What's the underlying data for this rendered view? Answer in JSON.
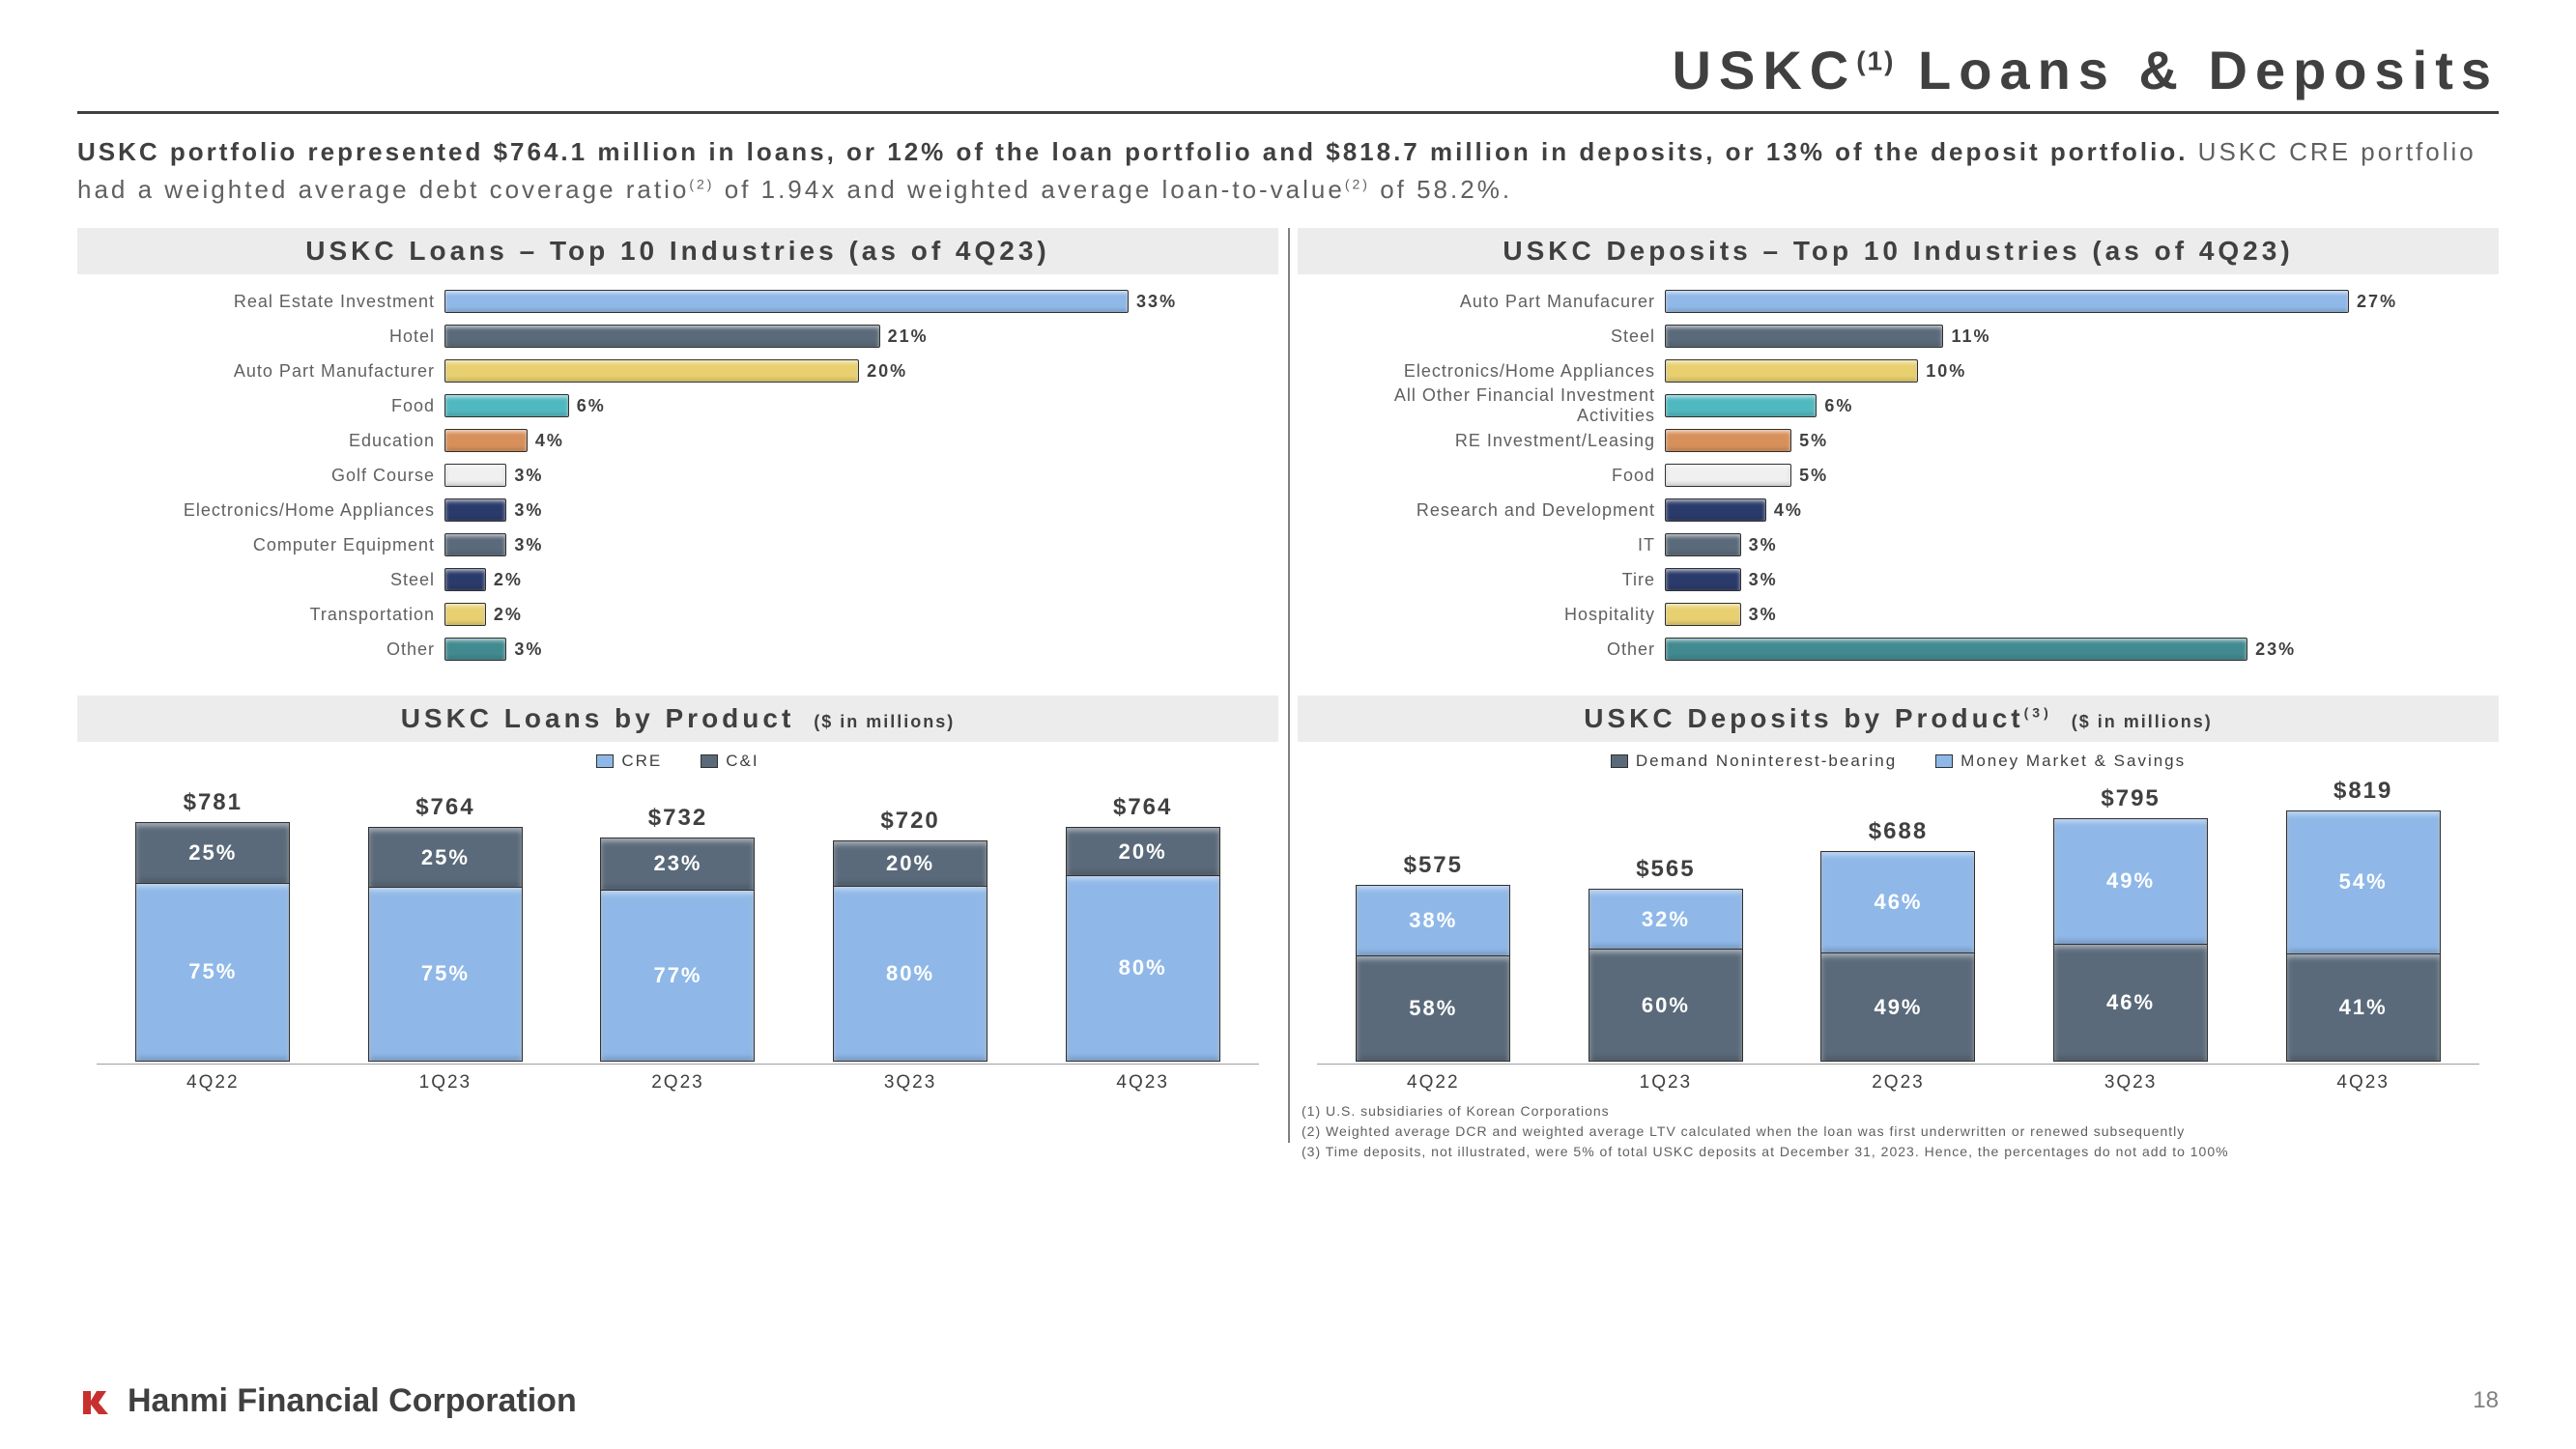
{
  "title": {
    "main": "USKC",
    "sup": "(1)",
    "rest": " Loans & Deposits"
  },
  "intro": {
    "bold": "USKC portfolio represented $764.1 million in loans, or 12% of the loan portfolio and $818.7 million in deposits, or 13% of the deposit portfolio.",
    "rest": " USKC CRE portfolio had a weighted average debt coverage ratio",
    "sup1": "(2)",
    "rest2": " of 1.94x and weighted average loan-to-value",
    "sup2": "(2)",
    "rest3": " of 58.2%."
  },
  "loans_top10": {
    "title": "USKC Loans – Top 10 Industries (as of 4Q23)",
    "max": 33,
    "colors": [
      "#8fb8e8",
      "#5a6a7a",
      "#e8d070",
      "#50b8c0",
      "#d8905a",
      "#f0f0f0",
      "#2a3a6a",
      "#5a6a7a",
      "#2a3a6a",
      "#e8d070",
      "#408a90"
    ],
    "rows": [
      {
        "label": "Real Estate Investment",
        "value": 33
      },
      {
        "label": "Hotel",
        "value": 21
      },
      {
        "label": "Auto Part Manufacturer",
        "value": 20
      },
      {
        "label": "Food",
        "value": 6
      },
      {
        "label": "Education",
        "value": 4
      },
      {
        "label": "Golf Course",
        "value": 3
      },
      {
        "label": "Electronics/Home Appliances",
        "value": 3
      },
      {
        "label": "Computer Equipment",
        "value": 3
      },
      {
        "label": "Steel",
        "value": 2
      },
      {
        "label": "Transportation",
        "value": 2
      },
      {
        "label": "Other",
        "value": 3
      }
    ]
  },
  "deposits_top10": {
    "title": "USKC Deposits – Top 10 Industries (as of 4Q23)",
    "max": 27,
    "colors": [
      "#8fb8e8",
      "#5a6a7a",
      "#e8d070",
      "#50b8c0",
      "#d8905a",
      "#f0f0f0",
      "#2a3a6a",
      "#5a6a7a",
      "#2a3a6a",
      "#e8d070",
      "#408a90"
    ],
    "rows": [
      {
        "label": "Auto Part Manufacurer",
        "value": 27
      },
      {
        "label": "Steel",
        "value": 11
      },
      {
        "label": "Electronics/Home Appliances",
        "value": 10
      },
      {
        "label": "All Other Financial Investment Activities",
        "value": 6
      },
      {
        "label": "RE Investment/Leasing",
        "value": 5
      },
      {
        "label": "Food",
        "value": 5
      },
      {
        "label": "Research and Development",
        "value": 4
      },
      {
        "label": "IT",
        "value": 3
      },
      {
        "label": "Tire",
        "value": 3
      },
      {
        "label": "Hospitality",
        "value": 3
      },
      {
        "label": "Other",
        "value": 23
      }
    ]
  },
  "loans_product": {
    "title": "USKC Loans by Product",
    "subtitle": "($ in millions)",
    "legend": [
      {
        "label": "CRE",
        "color": "#8fb8e8"
      },
      {
        "label": "C&I",
        "color": "#5a6a7a"
      }
    ],
    "categories": [
      "4Q22",
      "1Q23",
      "2Q23",
      "3Q23",
      "4Q23"
    ],
    "totals": [
      "$781",
      "$764",
      "$732",
      "$720",
      "$764"
    ],
    "max_total": 819,
    "stacks": [
      [
        {
          "label": "75%",
          "h": 75,
          "color": "#8fb8e8"
        },
        {
          "label": "25%",
          "h": 25,
          "color": "#5a6a7a"
        }
      ],
      [
        {
          "label": "75%",
          "h": 75,
          "color": "#8fb8e8"
        },
        {
          "label": "25%",
          "h": 25,
          "color": "#5a6a7a"
        }
      ],
      [
        {
          "label": "77%",
          "h": 77,
          "color": "#8fb8e8"
        },
        {
          "label": "23%",
          "h": 23,
          "color": "#5a6a7a"
        }
      ],
      [
        {
          "label": "80%",
          "h": 80,
          "color": "#8fb8e8"
        },
        {
          "label": "20%",
          "h": 20,
          "color": "#5a6a7a"
        }
      ],
      [
        {
          "label": "80%",
          "h": 80,
          "color": "#8fb8e8"
        },
        {
          "label": "20%",
          "h": 20,
          "color": "#5a6a7a"
        }
      ]
    ],
    "totals_num": [
      781,
      764,
      732,
      720,
      764
    ]
  },
  "deposits_product": {
    "title": "USKC Deposits by Product",
    "title_sup": "(3)",
    "subtitle": "($ in millions)",
    "legend": [
      {
        "label": "Demand Noninterest-bearing",
        "color": "#5a6a7a"
      },
      {
        "label": "Money Market & Savings",
        "color": "#8fb8e8"
      }
    ],
    "categories": [
      "4Q22",
      "1Q23",
      "2Q23",
      "3Q23",
      "4Q23"
    ],
    "totals": [
      "$575",
      "$565",
      "$688",
      "$795",
      "$819"
    ],
    "max_total": 819,
    "stacks": [
      [
        {
          "label": "58%",
          "h": 58,
          "color": "#5a6a7a"
        },
        {
          "label": "38%",
          "h": 38,
          "color": "#8fb8e8"
        }
      ],
      [
        {
          "label": "60%",
          "h": 60,
          "color": "#5a6a7a"
        },
        {
          "label": "32%",
          "h": 32,
          "color": "#8fb8e8"
        }
      ],
      [
        {
          "label": "49%",
          "h": 49,
          "color": "#5a6a7a"
        },
        {
          "label": "46%",
          "h": 46,
          "color": "#8fb8e8"
        }
      ],
      [
        {
          "label": "46%",
          "h": 46,
          "color": "#5a6a7a"
        },
        {
          "label": "49%",
          "h": 49,
          "color": "#8fb8e8"
        }
      ],
      [
        {
          "label": "41%",
          "h": 41,
          "color": "#5a6a7a"
        },
        {
          "label": "54%",
          "h": 54,
          "color": "#8fb8e8"
        }
      ]
    ],
    "totals_num": [
      575,
      565,
      688,
      795,
      819
    ]
  },
  "footnotes": [
    "(1)   U.S. subsidiaries of Korean Corporations",
    "(2)   Weighted average DCR and weighted average LTV calculated when the loan was first underwritten or renewed subsequently",
    "(3)   Time deposits, not illustrated, were 5% of total USKC deposits at December 31, 2023. Hence, the percentages do not add to 100%"
  ],
  "footer": {
    "brand": "Hanmi Financial Corporation",
    "page": "18",
    "logo_color": "#c83030"
  }
}
